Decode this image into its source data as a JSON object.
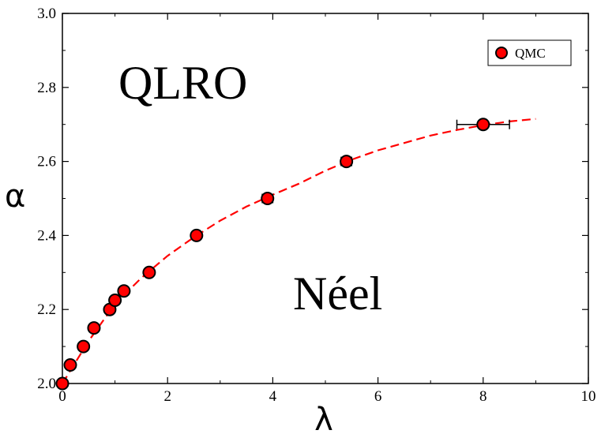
{
  "chart_data": {
    "type": "scatter",
    "xlabel": "λ",
    "ylabel": "α",
    "xlim": [
      0,
      10
    ],
    "ylim": [
      2.0,
      3.0
    ],
    "x_ticks": [
      0,
      2,
      4,
      6,
      8,
      10
    ],
    "y_ticks": [
      2.0,
      2.2,
      2.4,
      2.6,
      2.8,
      3.0
    ],
    "x_tick_labels": [
      "0",
      "2",
      "4",
      "6",
      "8",
      "10"
    ],
    "y_tick_labels": [
      "2.0",
      "2.2",
      "2.4",
      "2.6",
      "2.8",
      "3.0"
    ],
    "grid": false,
    "legend_position": "top-right",
    "annotations": [
      "QLRO",
      "Néel"
    ],
    "series": [
      {
        "name": "QMC",
        "marker": "circle",
        "color": "#ff0000",
        "edgecolor": "#000000",
        "points": [
          {
            "x": 0.0,
            "y": 2.0
          },
          {
            "x": 0.15,
            "y": 2.05
          },
          {
            "x": 0.4,
            "y": 2.1
          },
          {
            "x": 0.6,
            "y": 2.15
          },
          {
            "x": 0.9,
            "y": 2.2
          },
          {
            "x": 1.0,
            "y": 2.225
          },
          {
            "x": 1.17,
            "y": 2.25
          },
          {
            "x": 1.65,
            "y": 2.3
          },
          {
            "x": 2.55,
            "y": 2.4
          },
          {
            "x": 3.9,
            "y": 2.5,
            "xerr": 0.1
          },
          {
            "x": 5.4,
            "y": 2.6,
            "xerr": 0.1
          },
          {
            "x": 8.0,
            "y": 2.7,
            "xerr": 0.5
          }
        ]
      },
      {
        "type": "line",
        "style": "dashed",
        "color": "#ff0000",
        "points": [
          {
            "x": 0.0,
            "y": 2.0
          },
          {
            "x": 0.5,
            "y": 2.115
          },
          {
            "x": 1.0,
            "y": 2.215
          },
          {
            "x": 1.5,
            "y": 2.285
          },
          {
            "x": 2.0,
            "y": 2.345
          },
          {
            "x": 2.5,
            "y": 2.395
          },
          {
            "x": 3.0,
            "y": 2.44
          },
          {
            "x": 3.5,
            "y": 2.478
          },
          {
            "x": 4.0,
            "y": 2.51
          },
          {
            "x": 4.5,
            "y": 2.54
          },
          {
            "x": 5.0,
            "y": 2.575
          },
          {
            "x": 5.5,
            "y": 2.605
          },
          {
            "x": 6.0,
            "y": 2.63
          },
          {
            "x": 6.5,
            "y": 2.65
          },
          {
            "x": 7.0,
            "y": 2.67
          },
          {
            "x": 7.5,
            "y": 2.685
          },
          {
            "x": 8.0,
            "y": 2.698
          },
          {
            "x": 8.5,
            "y": 2.708
          },
          {
            "x": 9.0,
            "y": 2.715
          }
        ]
      }
    ]
  }
}
